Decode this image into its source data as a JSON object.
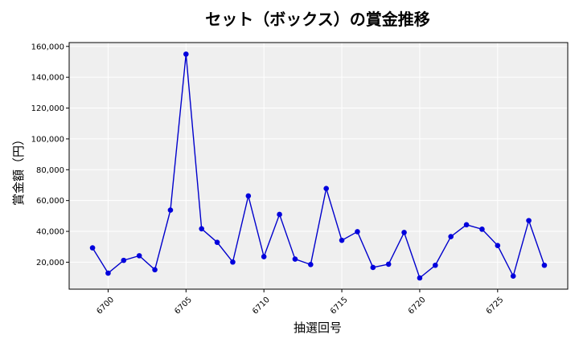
{
  "chart_data": {
    "type": "line",
    "title": "セット（ボックス）の賞金推移",
    "xlabel": "抽選回号",
    "ylabel": "賞金額（円）",
    "x": [
      6699,
      6700,
      6701,
      6702,
      6703,
      6704,
      6705,
      6706,
      6707,
      6708,
      6709,
      6710,
      6711,
      6712,
      6713,
      6714,
      6715,
      6716,
      6717,
      6718,
      6719,
      6720,
      6721,
      6722,
      6723,
      6724,
      6725,
      6726,
      6727,
      6728
    ],
    "series": [
      {
        "values": [
          29300,
          12900,
          21200,
          24200,
          15100,
          53800,
          155000,
          41700,
          32900,
          20100,
          63000,
          23600,
          51000,
          22000,
          18500,
          67800,
          34200,
          39800,
          16600,
          18700,
          39300,
          9800,
          18000,
          36600,
          44300,
          41400,
          30800,
          11000,
          47000,
          18000
        ]
      }
    ],
    "xticks": [
      "6700",
      "6705",
      "6710",
      "6715",
      "6720",
      "6725"
    ],
    "yticks": [
      "20,000",
      "40,000",
      "60,000",
      "80,000",
      "100,000",
      "120,000",
      "140,000",
      "160,000"
    ],
    "xlim": [
      6697.5,
      6729.5
    ],
    "ylim": [
      2500,
      162500
    ],
    "grid": true,
    "colors": {
      "line": "#0000cc",
      "marker": "#0000dd",
      "plot_background": "#efefef",
      "grid": "#ffffff"
    }
  }
}
